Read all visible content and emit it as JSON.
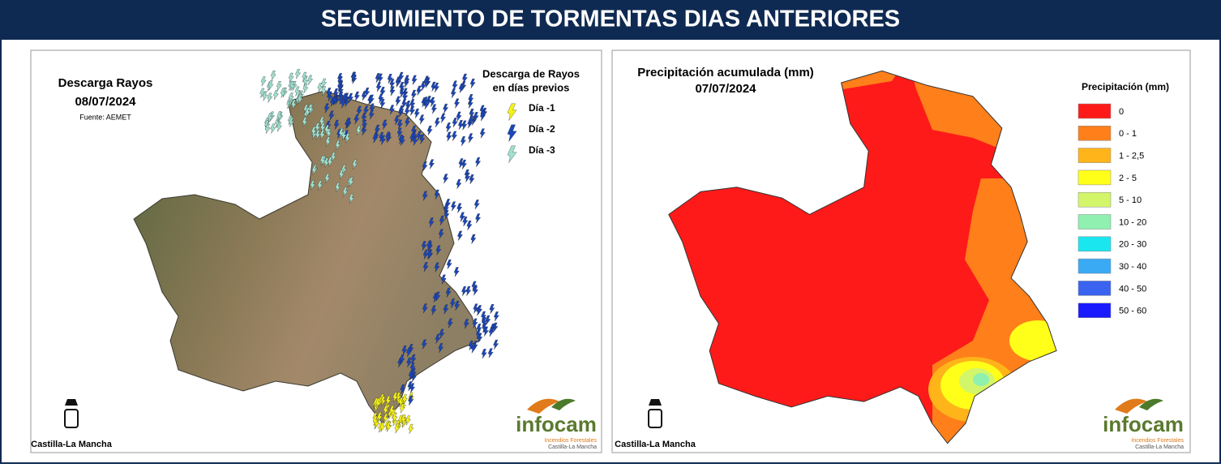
{
  "header": {
    "title": "SEGUIMIENTO DE TORMENTAS DIAS ANTERIORES"
  },
  "left_map": {
    "title": "Descarga Rayos",
    "date": "08/07/2024",
    "source": "Fuente: AEMET",
    "legend": {
      "title_line1": "Descarga de Rayos",
      "title_line2": "en días previos",
      "items": [
        {
          "label": "Día -1",
          "color": "#f5f21a"
        },
        {
          "label": "Día -2",
          "color": "#1b46b8"
        },
        {
          "label": "Día -3",
          "color": "#9fe0d0"
        }
      ]
    },
    "logo_left": "Castilla-La Mancha",
    "logo_right": "infocam",
    "logo_right_sub1": "Incendios Forestales",
    "logo_right_sub2": "Castilla-La Mancha"
  },
  "right_map": {
    "title": "Precipitación acumulada (mm)",
    "date": "07/07/2024",
    "legend": {
      "title": "Precipitación (mm)",
      "items": [
        {
          "label": "0",
          "color": "#ff1a1a"
        },
        {
          "label": "0 - 1",
          "color": "#ff7f1a"
        },
        {
          "label": "1 - 2,5",
          "color": "#ffb41a"
        },
        {
          "label": "2 - 5",
          "color": "#ffff1a"
        },
        {
          "label": "5 - 10",
          "color": "#d2f56a"
        },
        {
          "label": "10 - 20",
          "color": "#8ff0b0"
        },
        {
          "label": "20 - 30",
          "color": "#1ae6f0"
        },
        {
          "label": "30 - 40",
          "color": "#3aaaf5"
        },
        {
          "label": "40 - 50",
          "color": "#3a64f0"
        },
        {
          "label": "50 - 60",
          "color": "#1a1aff"
        }
      ]
    },
    "logo_left": "Castilla-La Mancha",
    "logo_right": "infocam",
    "logo_right_sub1": "Incendios Forestales",
    "logo_right_sub2": "Castilla-La Mancha"
  }
}
